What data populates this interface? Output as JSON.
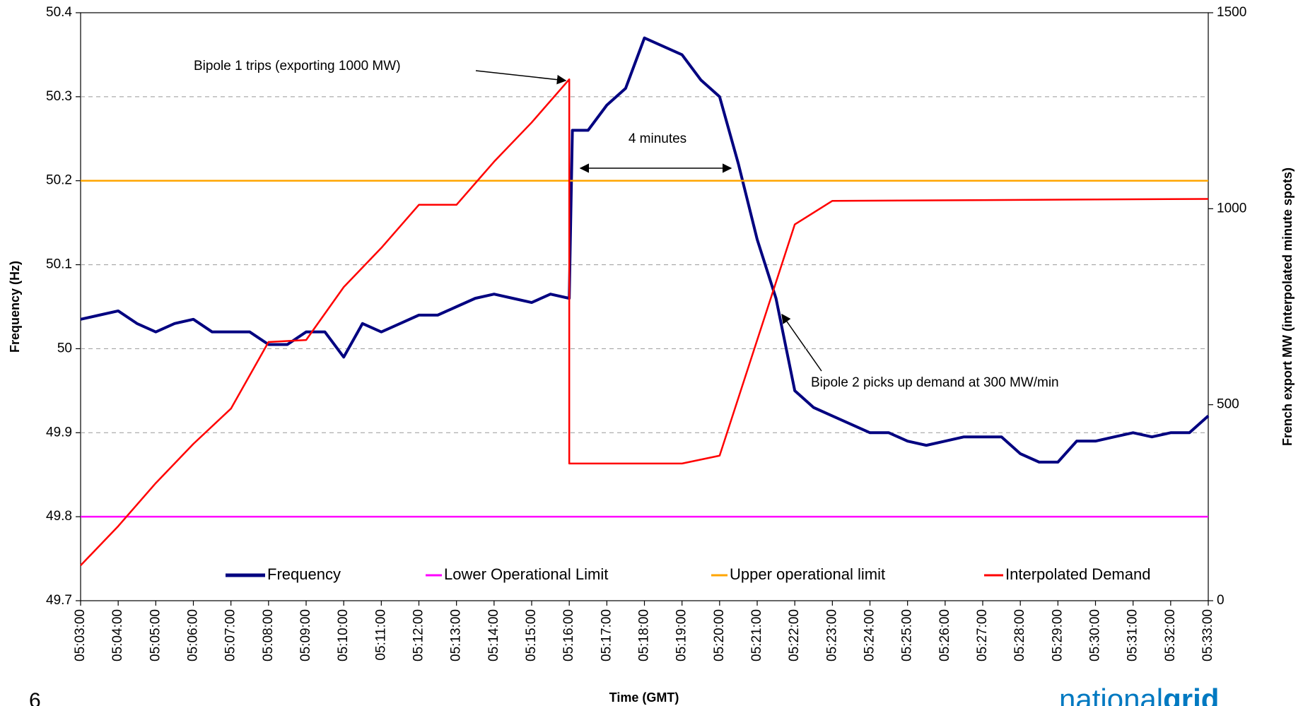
{
  "chart_data": {
    "type": "line",
    "xlabel": "Time (GMT)",
    "ylabel": "Frequency (Hz)",
    "y2label": "French export MW (interpolated minute spots)",
    "xlim": [
      "05:03:00",
      "05:33:00"
    ],
    "xticks": [
      "05:03:00",
      "05:04:00",
      "05:05:00",
      "05:06:00",
      "05:07:00",
      "05:08:00",
      "05:09:00",
      "05:10:00",
      "05:11:00",
      "05:12:00",
      "05:13:00",
      "05:14:00",
      "05:15:00",
      "05:16:00",
      "05:17:00",
      "05:18:00",
      "05:19:00",
      "05:20:00",
      "05:21:00",
      "05:22:00",
      "05:23:00",
      "05:24:00",
      "05:25:00",
      "05:26:00",
      "05:27:00",
      "05:28:00",
      "05:29:00",
      "05:30:00",
      "05:31:00",
      "05:32:00",
      "05:33:00"
    ],
    "ylim": [
      49.7,
      50.4
    ],
    "yticks": [
      49.7,
      49.8,
      49.9,
      50,
      50.1,
      50.2,
      50.3,
      50.4
    ],
    "y2lim": [
      0,
      1500
    ],
    "y2ticks": [
      0,
      500,
      1000,
      1500
    ],
    "grid": true,
    "legend": "bottom",
    "series": [
      {
        "name": "Frequency",
        "color": "#000080",
        "x": [
          "05:03:00",
          "05:03:30",
          "05:04:00",
          "05:04:30",
          "05:05:00",
          "05:05:30",
          "05:06:00",
          "05:06:30",
          "05:07:00",
          "05:07:30",
          "05:08:00",
          "05:08:30",
          "05:09:00",
          "05:09:30",
          "05:10:00",
          "05:10:30",
          "05:11:00",
          "05:11:30",
          "05:12:00",
          "05:12:30",
          "05:13:00",
          "05:13:30",
          "05:14:00",
          "05:14:30",
          "05:15:00",
          "05:15:30",
          "05:16:00",
          "05:16:05",
          "05:16:30",
          "05:17:00",
          "05:17:30",
          "05:18:00",
          "05:18:30",
          "05:19:00",
          "05:19:30",
          "05:20:00",
          "05:20:30",
          "05:21:00",
          "05:21:30",
          "05:22:00",
          "05:22:30",
          "05:23:00",
          "05:23:30",
          "05:24:00",
          "05:24:30",
          "05:25:00",
          "05:25:30",
          "05:26:00",
          "05:26:30",
          "05:27:00",
          "05:27:30",
          "05:28:00",
          "05:28:30",
          "05:29:00",
          "05:29:30",
          "05:30:00",
          "05:30:30",
          "05:31:00",
          "05:31:30",
          "05:32:00",
          "05:32:30",
          "05:33:00"
        ],
        "values": [
          50.035,
          50.04,
          50.045,
          50.03,
          50.02,
          50.03,
          50.035,
          50.02,
          50.02,
          50.02,
          50.005,
          50.005,
          50.02,
          50.02,
          49.99,
          50.03,
          50.02,
          50.03,
          50.04,
          50.04,
          50.05,
          50.06,
          50.065,
          50.06,
          50.055,
          50.065,
          50.06,
          50.26,
          50.26,
          50.29,
          50.31,
          50.37,
          50.36,
          50.35,
          50.32,
          50.3,
          50.22,
          50.13,
          50.06,
          49.95,
          49.93,
          49.92,
          49.91,
          49.9,
          49.9,
          49.89,
          49.885,
          49.89,
          49.895,
          49.895,
          49.895,
          49.875,
          49.865,
          49.865,
          49.89,
          49.89,
          49.895,
          49.9,
          49.895,
          49.9,
          49.9,
          49.92
        ]
      },
      {
        "name": "Lower Operational Limit",
        "color": "#ff00ff",
        "x": [
          "05:03:00",
          "05:33:00"
        ],
        "values": [
          49.8,
          49.8
        ]
      },
      {
        "name": "Upper operational limit",
        "color": "#ffa500",
        "x": [
          "05:03:00",
          "05:33:00"
        ],
        "values": [
          50.2,
          50.2
        ]
      },
      {
        "name": "Interpolated Demand",
        "color": "#ff0000",
        "axis": "y2",
        "x": [
          "05:03:00",
          "05:04:00",
          "05:05:00",
          "05:06:00",
          "05:07:00",
          "05:08:00",
          "05:09:00",
          "05:10:00",
          "05:11:00",
          "05:12:00",
          "05:13:00",
          "05:14:00",
          "05:15:00",
          "05:16:00",
          "05:16:00",
          "05:17:00",
          "05:18:00",
          "05:19:00",
          "05:20:00",
          "05:22:00",
          "05:23:00",
          "05:33:00"
        ],
        "values": [
          90,
          190,
          300,
          400,
          490,
          660,
          665,
          800,
          900,
          1010,
          1010,
          1120,
          1220,
          1330,
          350,
          350,
          350,
          350,
          370,
          960,
          1020,
          1025
        ]
      }
    ],
    "annotations": [
      "Bipole 1 trips (exporting 1000 MW)",
      "4 minutes",
      "Bipole 2 picks up demand at 300 MW/min"
    ]
  },
  "footer": {
    "page": "6",
    "logo": [
      "national",
      "grid"
    ]
  }
}
